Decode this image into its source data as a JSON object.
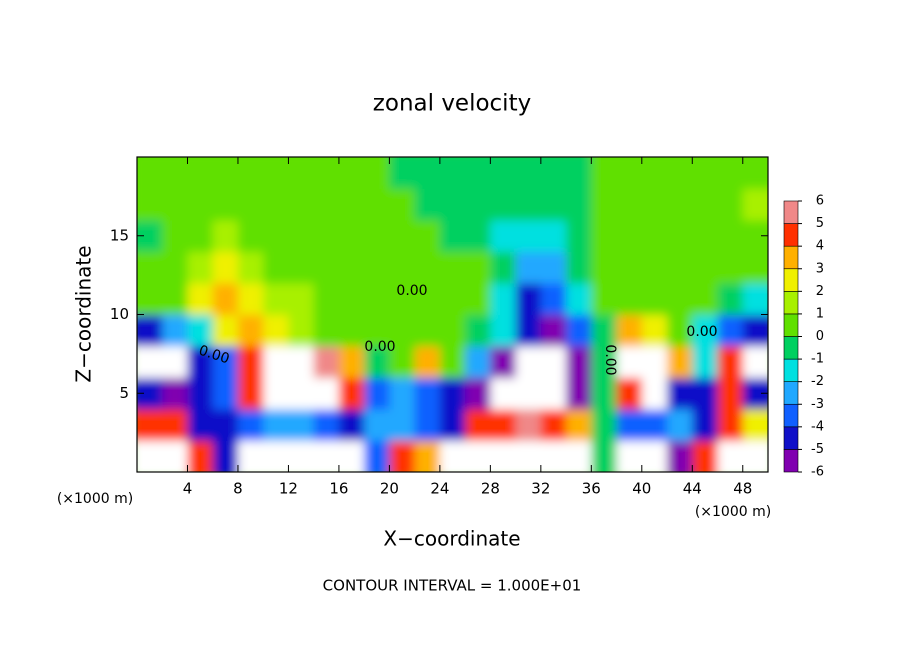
{
  "chart_data": {
    "type": "contour",
    "title": "zonal velocity",
    "xlabel": "X−coordinate",
    "ylabel": "Z−coordinate",
    "x_unit": "(×1000 m)",
    "y_unit": "(×1000 m)",
    "footnote": "CONTOUR INTERVAL = 1.000E+01",
    "contour_labels": [
      "0.00",
      "0.00",
      "0.00",
      "0.00",
      "0.00"
    ],
    "xlim": [
      0,
      50
    ],
    "ylim": [
      0,
      20
    ],
    "xticks": [
      4,
      8,
      12,
      16,
      20,
      24,
      28,
      32,
      36,
      40,
      44,
      48
    ],
    "yticks": [
      5,
      10,
      15
    ],
    "levels": [
      -6,
      -5,
      -4,
      -3,
      -2,
      -1,
      0,
      1,
      2,
      3,
      4,
      5,
      6
    ],
    "colors": [
      "#8000b0",
      "#1010c8",
      "#1060ff",
      "#20a8ff",
      "#00e0e0",
      "#00d060",
      "#60e000",
      "#a8f000",
      "#f0f000",
      "#ffb000",
      "#ff3000",
      "#f08888"
    ],
    "x": [
      1,
      3,
      5,
      7,
      9,
      11,
      13,
      15,
      17,
      19,
      21,
      23,
      25,
      27,
      29,
      31,
      33,
      35,
      37,
      39,
      41,
      43,
      45,
      47,
      49
    ],
    "y": [
      1,
      3,
      5,
      7,
      9,
      11,
      13,
      15,
      17,
      19
    ],
    "z": [
      [
        8,
        8,
        5,
        -4,
        8,
        8,
        8,
        8,
        8,
        -3,
        5,
        4,
        8,
        8,
        8,
        8,
        8,
        8,
        0,
        -8,
        -8,
        -5,
        5,
        8,
        8
      ],
      [
        5,
        5,
        -4,
        -4,
        -3,
        -2,
        -2,
        -3,
        -4,
        -2,
        -2,
        -3,
        -4,
        5,
        5,
        6,
        5,
        4,
        0,
        -3,
        -3,
        -2,
        -4,
        5,
        3
      ],
      [
        -4,
        -5,
        -4,
        -3,
        5,
        8,
        8,
        8,
        5,
        -3,
        -2,
        -3,
        -4,
        -6,
        -8,
        -8,
        -8,
        -5,
        0,
        5,
        8,
        -4,
        -4,
        5,
        -4
      ],
      [
        -8,
        -8,
        -4,
        -3,
        5,
        8,
        8,
        6,
        4,
        0,
        0.5,
        4,
        1,
        -2,
        -5,
        -8,
        -8,
        -5,
        0,
        8,
        8,
        4,
        -1,
        5,
        8
      ],
      [
        -4,
        -2,
        -1,
        3,
        4,
        3,
        2,
        1,
        0.5,
        0.5,
        0.5,
        0.5,
        0.5,
        0,
        -1,
        -4,
        -5,
        -3,
        0,
        4,
        3,
        1,
        -1,
        -3,
        -4
      ],
      [
        0.5,
        1,
        3,
        4,
        3,
        2,
        1.5,
        1,
        0.5,
        0.5,
        0.5,
        0.5,
        0.5,
        0.3,
        -1,
        -4,
        -3,
        -1,
        0.5,
        0.5,
        0.5,
        0.3,
        0.5,
        -0.5,
        -1
      ],
      [
        0.5,
        1,
        1.5,
        3,
        2,
        1,
        1,
        0.8,
        0.5,
        0.5,
        0.5,
        0.5,
        0.3,
        0.2,
        -0.5,
        -2,
        -2,
        -0.5,
        0.5,
        0.6,
        0.6,
        0.6,
        0.5,
        0.5,
        0.5
      ],
      [
        -0.5,
        0.8,
        1,
        1.2,
        1,
        1,
        0.8,
        0.6,
        0.5,
        0.5,
        0.3,
        0.2,
        -0.5,
        -0.5,
        -1,
        -1.5,
        -1.2,
        -0.5,
        0.5,
        0.8,
        0.8,
        0.8,
        0.8,
        1,
        1
      ],
      [
        0.8,
        1,
        1,
        1,
        1,
        1,
        0.8,
        0.6,
        0.5,
        0.3,
        0.2,
        0,
        -0.3,
        -0.3,
        -0.5,
        -0.8,
        -0.5,
        -0.3,
        0.5,
        0.8,
        1,
        1,
        1,
        1,
        1.2
      ],
      [
        0.8,
        0.8,
        1,
        1,
        1,
        1,
        0.8,
        0.6,
        0.5,
        0.2,
        0,
        -0.2,
        -0.3,
        -0.3,
        -0.5,
        -0.5,
        -0.3,
        -0.2,
        0.3,
        0.8,
        1,
        1,
        1,
        1,
        1
      ]
    ]
  }
}
